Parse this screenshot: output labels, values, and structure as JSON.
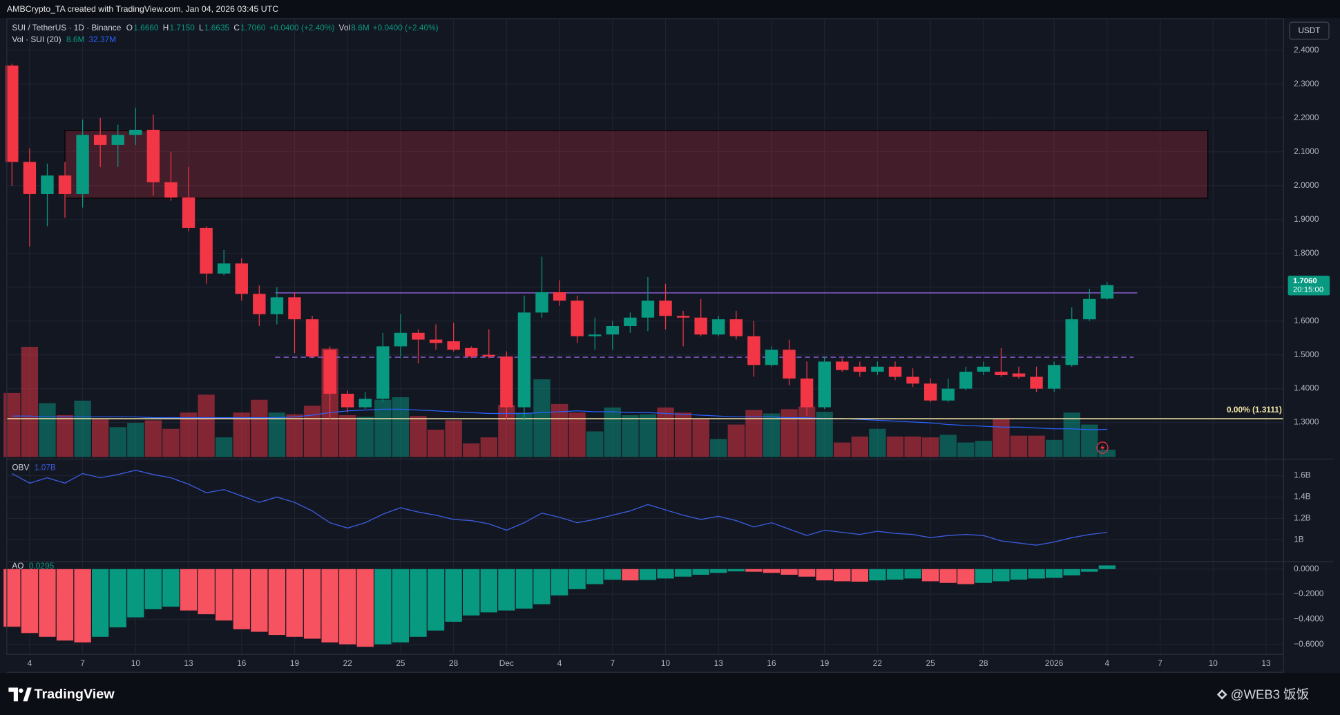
{
  "header": "AMBCrypto_TA created with TradingView.com, Jan 04, 2026 03:45 UTC",
  "currency_button": "USDT",
  "footer": {
    "brand": "TradingView",
    "watermark": "@WEB3 饭饭"
  },
  "chart_data": {
    "type": "candlestick",
    "title": "SUI / TetherUS · 1D · Binance",
    "legend": {
      "o": "O",
      "h": "H",
      "l": "L",
      "c": "C",
      "change": "+0.0400 (+2.40%)",
      "vol": "Vol"
    },
    "last_labels": {
      "open": "1.6660",
      "high": "1.7150",
      "low": "1.6635",
      "close": "1.7060"
    },
    "open": [
      2.355,
      2.07,
      1.975,
      2.03,
      1.975,
      2.15,
      2.12,
      2.15,
      2.165,
      2.01,
      1.965,
      1.875,
      1.74,
      1.77,
      1.68,
      1.62,
      1.67,
      1.605,
      1.515,
      1.385,
      1.345,
      1.37,
      1.525,
      1.565,
      1.545,
      1.54,
      1.52,
      1.5,
      1.495,
      1.345,
      1.625,
      1.685,
      1.66,
      1.555,
      1.56,
      1.585,
      1.61,
      1.66,
      1.615,
      1.61,
      1.56,
      1.605,
      1.555,
      1.47,
      1.515,
      1.43,
      1.345,
      1.48,
      1.465,
      1.45,
      1.465,
      1.435,
      1.415,
      1.365,
      1.4,
      1.45,
      1.45,
      1.445,
      1.435,
      1.4,
      1.47,
      1.605,
      1.666
    ],
    "high": [
      2.36,
      2.11,
      2.065,
      2.07,
      2.195,
      2.2,
      2.18,
      2.23,
      2.21,
      2.1,
      2.055,
      1.88,
      1.81,
      1.785,
      1.705,
      1.7,
      1.685,
      1.615,
      1.525,
      1.395,
      1.39,
      1.565,
      1.62,
      1.575,
      1.59,
      1.595,
      1.525,
      1.575,
      1.51,
      1.675,
      1.79,
      1.72,
      1.675,
      1.61,
      1.6,
      1.625,
      1.73,
      1.71,
      1.63,
      1.665,
      1.615,
      1.63,
      1.6,
      1.525,
      1.545,
      1.48,
      1.495,
      1.49,
      1.48,
      1.48,
      1.48,
      1.46,
      1.43,
      1.43,
      1.465,
      1.48,
      1.52,
      1.465,
      1.465,
      1.48,
      1.64,
      1.695,
      1.715
    ],
    "low": [
      2.0,
      1.82,
      1.88,
      1.905,
      1.935,
      2.055,
      2.055,
      2.12,
      1.97,
      1.955,
      1.865,
      1.71,
      1.735,
      1.66,
      1.585,
      1.59,
      1.505,
      1.49,
      1.31,
      1.33,
      1.34,
      1.36,
      1.49,
      1.475,
      1.515,
      1.51,
      1.49,
      1.49,
      1.31,
      1.305,
      1.61,
      1.645,
      1.535,
      1.515,
      1.515,
      1.565,
      1.57,
      1.575,
      1.525,
      1.555,
      1.555,
      1.545,
      1.435,
      1.465,
      1.41,
      1.32,
      1.34,
      1.45,
      1.435,
      1.44,
      1.425,
      1.405,
      1.36,
      1.36,
      1.395,
      1.44,
      1.435,
      1.43,
      1.39,
      1.39,
      1.465,
      1.6,
      1.6635
    ],
    "close": [
      2.07,
      1.975,
      2.03,
      1.975,
      2.15,
      2.12,
      2.15,
      2.165,
      2.01,
      1.965,
      1.875,
      1.74,
      1.77,
      1.68,
      1.62,
      1.67,
      1.605,
      1.495,
      1.385,
      1.345,
      1.37,
      1.525,
      1.565,
      1.545,
      1.535,
      1.515,
      1.495,
      1.495,
      1.345,
      1.625,
      1.685,
      1.66,
      1.555,
      1.56,
      1.585,
      1.61,
      1.66,
      1.615,
      1.61,
      1.56,
      1.605,
      1.555,
      1.47,
      1.515,
      1.43,
      1.345,
      1.48,
      1.455,
      1.45,
      1.465,
      1.435,
      1.415,
      1.365,
      1.4,
      1.45,
      1.465,
      1.44,
      1.435,
      1.4,
      1.47,
      1.605,
      1.665,
      1.706
    ],
    "up_color": "#089981",
    "down_color": "#f23645",
    "xlim": [
      -0.29,
      71.99
    ],
    "xticks": [
      {
        "value": 1,
        "label": "4"
      },
      {
        "value": 4,
        "label": "7"
      },
      {
        "value": 7,
        "label": "10"
      },
      {
        "value": 10,
        "label": "13"
      },
      {
        "value": 13,
        "label": "16"
      },
      {
        "value": 16,
        "label": "19"
      },
      {
        "value": 19,
        "label": "22"
      },
      {
        "value": 22,
        "label": "25"
      },
      {
        "value": 25,
        "label": "28"
      },
      {
        "value": 28,
        "label": "Dec"
      },
      {
        "value": 31,
        "label": "4"
      },
      {
        "value": 34,
        "label": "7"
      },
      {
        "value": 37,
        "label": "10"
      },
      {
        "value": 40,
        "label": "13"
      },
      {
        "value": 43,
        "label": "16"
      },
      {
        "value": 46,
        "label": "19"
      },
      {
        "value": 49,
        "label": "22"
      },
      {
        "value": 52,
        "label": "25"
      },
      {
        "value": 55,
        "label": "28"
      },
      {
        "value": 59,
        "label": "2026"
      },
      {
        "value": 62,
        "label": "4"
      },
      {
        "value": 65,
        "label": "7"
      },
      {
        "value": 68,
        "label": "10"
      },
      {
        "value": 71,
        "label": "13"
      }
    ],
    "ylim": [
      1.198,
      2.493
    ],
    "yticks": [
      {
        "value": 1.3,
        "label": "1.3000"
      },
      {
        "value": 1.4,
        "label": "1.4000"
      },
      {
        "value": 1.5,
        "label": "1.5000"
      },
      {
        "value": 1.6,
        "label": "1.6000"
      },
      {
        "value": 1.7,
        "label": "1.7000"
      },
      {
        "value": 1.8,
        "label": "1.8000"
      },
      {
        "value": 1.9,
        "label": "1.9000"
      },
      {
        "value": 2.0,
        "label": "2.0000"
      },
      {
        "value": 2.1,
        "label": "2.1000"
      },
      {
        "value": 2.2,
        "label": "2.2000"
      },
      {
        "value": 2.3,
        "label": "2.3000"
      },
      {
        "value": 2.4,
        "label": "2.4000"
      }
    ],
    "grid": true,
    "price_tag": {
      "label": "1.7060",
      "countdown": "20:15:00"
    },
    "zone": {
      "x": [
        3,
        67.7
      ],
      "y": [
        1.963,
        2.163
      ],
      "color": "#f23645"
    },
    "levels": [
      {
        "value": 1.683,
        "x": [
          14.9,
          63.7
        ],
        "style": "solid",
        "color": "#7e57c2"
      },
      {
        "value": 1.493,
        "x": [
          14.9,
          63.5
        ],
        "style": "dashed",
        "color": "#7e57c2"
      },
      {
        "value": 1.3111,
        "x": [
          -0.29,
          71.99
        ],
        "style": "solid",
        "color": "#f3e6a6",
        "label": "0.00% (1.3111)"
      }
    ],
    "volume": {
      "name": "Vol · SUI (20)",
      "values": [
        75,
        129,
        63,
        49,
        66,
        44,
        35,
        40,
        43,
        33,
        52,
        73,
        23,
        52,
        67,
        52,
        50,
        60,
        127,
        49,
        47,
        67,
        70,
        48,
        32,
        43,
        16,
        23,
        61,
        52,
        91,
        62,
        52,
        30,
        58,
        49,
        50,
        58,
        52,
        45,
        21,
        38,
        55,
        51,
        56,
        59,
        53,
        17,
        24,
        33,
        24,
        24,
        23,
        26,
        17,
        19,
        45,
        25,
        25,
        20,
        52,
        38,
        8.6
      ],
      "last_label": "8.6M",
      "ylim": [
        0,
        513
      ],
      "ma": {
        "values": [
          48,
          48,
          47,
          47,
          47,
          47,
          47,
          47,
          46,
          46,
          46,
          46,
          46,
          46,
          46,
          46,
          47,
          49,
          52,
          54,
          55,
          56,
          56,
          55,
          54,
          53,
          52,
          51,
          51,
          51,
          52,
          53,
          54,
          53,
          53,
          52,
          52,
          51,
          50,
          49,
          48,
          47,
          47,
          47,
          46,
          46,
          45,
          45,
          44,
          43,
          42,
          41,
          40,
          38,
          37,
          36,
          35,
          35,
          34,
          33,
          33,
          32,
          32.37
        ],
        "last_label": "32.37M",
        "color": "#2962ff"
      }
    },
    "obv": {
      "name": "OBV",
      "values": [
        1.62,
        1.53,
        1.58,
        1.53,
        1.62,
        1.58,
        1.61,
        1.65,
        1.61,
        1.58,
        1.52,
        1.44,
        1.47,
        1.41,
        1.35,
        1.4,
        1.35,
        1.27,
        1.16,
        1.11,
        1.16,
        1.24,
        1.3,
        1.26,
        1.23,
        1.19,
        1.18,
        1.15,
        1.09,
        1.16,
        1.25,
        1.21,
        1.16,
        1.19,
        1.23,
        1.27,
        1.33,
        1.28,
        1.23,
        1.19,
        1.22,
        1.18,
        1.12,
        1.16,
        1.1,
        1.04,
        1.09,
        1.07,
        1.05,
        1.08,
        1.06,
        1.05,
        1.02,
        1.04,
        1.05,
        1.04,
        0.99,
        0.97,
        0.95,
        0.98,
        1.02,
        1.05,
        1.07
      ],
      "last_label": "1.07B",
      "color": "#3b5bdb",
      "ylim": [
        0.8,
        1.75
      ],
      "yticks": [
        {
          "value": 1,
          "label": "1B"
        },
        {
          "value": 1.2,
          "label": "1.2B"
        },
        {
          "value": 1.4,
          "label": "1.4B"
        },
        {
          "value": 1.6,
          "label": "1.6B"
        }
      ]
    },
    "ao": {
      "name": "AO",
      "values": [
        -0.46,
        -0.51,
        -0.54,
        -0.57,
        -0.585,
        -0.54,
        -0.465,
        -0.385,
        -0.32,
        -0.3,
        -0.33,
        -0.36,
        -0.41,
        -0.48,
        -0.5,
        -0.525,
        -0.54,
        -0.555,
        -0.585,
        -0.6,
        -0.62,
        -0.6,
        -0.585,
        -0.54,
        -0.49,
        -0.42,
        -0.37,
        -0.345,
        -0.33,
        -0.315,
        -0.28,
        -0.21,
        -0.16,
        -0.12,
        -0.085,
        -0.09,
        -0.087,
        -0.075,
        -0.06,
        -0.045,
        -0.03,
        -0.018,
        -0.021,
        -0.03,
        -0.045,
        -0.06,
        -0.09,
        -0.097,
        -0.1,
        -0.09,
        -0.084,
        -0.075,
        -0.097,
        -0.11,
        -0.12,
        -0.11,
        -0.097,
        -0.084,
        -0.075,
        -0.07,
        -0.05,
        -0.021,
        0.0295
      ],
      "last_label": "0.0295",
      "up_color": "#089981",
      "down_color": "#f7525f",
      "ylim": [
        -0.68,
        0.056
      ],
      "yticks": [
        {
          "value": 0,
          "label": "0.0000"
        },
        {
          "value": -0.2,
          "label": "−0.2000"
        },
        {
          "value": -0.4,
          "label": "−0.4000"
        },
        {
          "value": -0.6,
          "label": "−0.6000"
        }
      ]
    }
  }
}
